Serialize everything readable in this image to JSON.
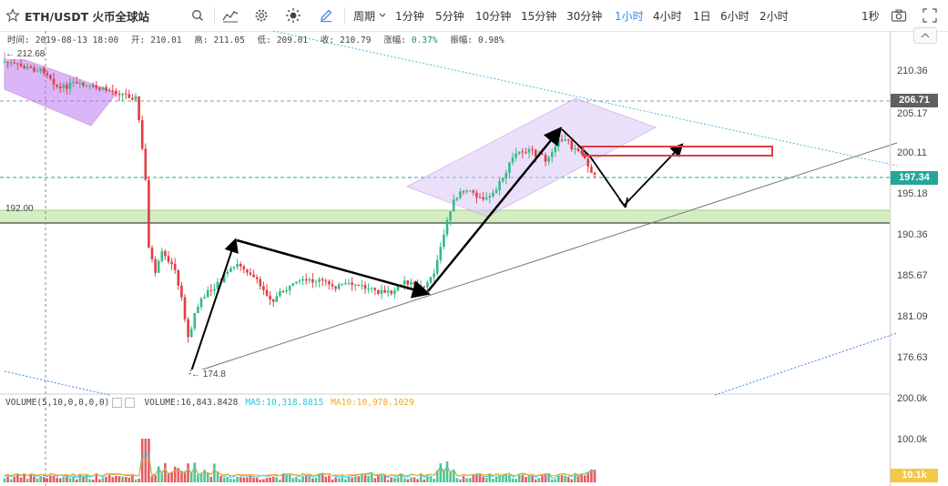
{
  "toolbar": {
    "symbol": "ETH/USDT 火币全球站",
    "period_label": "周期",
    "intervals": [
      "1分钟",
      "5分钟",
      "10分钟",
      "15分钟",
      "30分钟",
      "1小时",
      "4小时",
      "1日",
      "6小时",
      "2小时"
    ],
    "active_interval": "1小时",
    "refresh": "1秒"
  },
  "info": {
    "time_label": "时间:",
    "time": "2019-08-13 18:00",
    "open_label": "开:",
    "open": "210.01",
    "high_label": "高:",
    "high": "211.05",
    "low_label": "低:",
    "low": "209.01",
    "close_label": "收:",
    "close": "210.79",
    "change_label": "涨幅:",
    "change": "0.37%",
    "amplitude_label": "振幅:",
    "amplitude": "0.98%"
  },
  "volume": {
    "indicator": "VOLUME(5,10,0,0,0,0)",
    "volume_label": "VOLUME:",
    "volume_value": "16,843.8428",
    "ma5_label": "MA5:",
    "ma5_value": "10,318.8815",
    "ma10_label": "MA10:",
    "ma10_value": "10,978.1029"
  },
  "axis": {
    "price_ticks": [
      "210.36",
      "205.17",
      "200.11",
      "195.18",
      "190.36",
      "185.67",
      "181.09",
      "176.63"
    ],
    "volume_ticks": [
      "200.0k",
      "100.0k"
    ],
    "tag_high": "206.71",
    "tag_last": "197.34",
    "tag_volume": "10.1k"
  },
  "annotations": {
    "level_label": "192.00",
    "high_label": "← 212.68",
    "low_label": "← 174.8"
  },
  "colors": {
    "up": "#2ebd85",
    "down": "#e03e44",
    "accent": "#3a86e8",
    "tag_high": "#606060",
    "tag_last": "#26a69a",
    "tag_volume": "#f5c842"
  }
}
